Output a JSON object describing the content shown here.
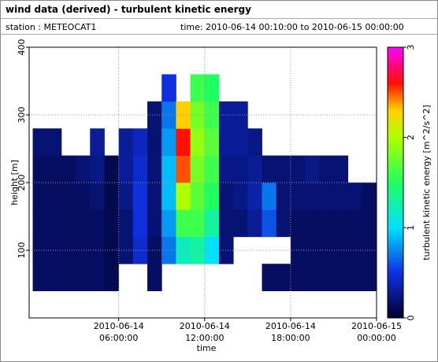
{
  "header": {
    "title": "wind data (derived) - turbulent kinetic energy",
    "station": "station : METEOCAT1",
    "time": "time: 2010-06-14 00:10:00 to 2010-06-15 00:00:00"
  },
  "chart_data": {
    "type": "heatmap",
    "x_label": "time",
    "y_label": "height [m]",
    "colorbar_label": "turbulent kinetic energy [m^2/s^2]",
    "xlim": [
      -0.25,
      24
    ],
    "xticks": [
      {
        "value": 6,
        "label": [
          "2010-06-14",
          "06:00:00"
        ]
      },
      {
        "value": 12,
        "label": [
          "2010-06-14",
          "12:00:00"
        ]
      },
      {
        "value": 18,
        "label": [
          "2010-06-14",
          "18:00:00"
        ]
      },
      {
        "value": 24,
        "label": [
          "2010-06-15",
          "00:00:00"
        ]
      }
    ],
    "ylim": [
      0,
      400
    ],
    "yticks": [
      100,
      200,
      300,
      400
    ],
    "clim": [
      0,
      3
    ],
    "cticks": [
      0,
      1,
      2,
      3
    ],
    "grid": true,
    "colormap": [
      [
        0,
        "#00002a"
      ],
      [
        0.5,
        "#1030e0"
      ],
      [
        1,
        "#00e0ff"
      ],
      [
        1.5,
        "#20ff60"
      ],
      [
        2,
        "#b0ff00"
      ],
      [
        2.3,
        "#ffd000"
      ],
      [
        2.6,
        "#ff1000"
      ],
      [
        3,
        "#ff00ff"
      ]
    ],
    "x": [
      0.5,
      1.5,
      2.5,
      3.5,
      4.5,
      5.5,
      6.5,
      7.5,
      8.5,
      9.5,
      10.5,
      11.5,
      12.5,
      13.5,
      14.5,
      15.5,
      16.5,
      17.5,
      18.5,
      19.5,
      20.5,
      21.5,
      22.5,
      23.5
    ],
    "y": [
      60,
      100,
      140,
      180,
      220,
      260,
      300,
      340
    ],
    "z": [
      [
        0.15,
        0.15,
        0.15,
        0.15,
        0.15,
        0.2,
        null,
        null
      ],
      [
        0.15,
        0.15,
        0.15,
        0.15,
        0.15,
        0.2,
        null,
        null
      ],
      [
        0.15,
        0.15,
        0.15,
        0.15,
        0.15,
        null,
        null,
        null
      ],
      [
        0.15,
        0.15,
        0.15,
        0.15,
        0.2,
        null,
        null,
        null
      ],
      [
        0.15,
        0.15,
        0.15,
        0.2,
        0.25,
        0.3,
        null,
        null
      ],
      [
        0.1,
        0.1,
        0.1,
        0.1,
        0.1,
        null,
        null,
        null
      ],
      [
        null,
        0.2,
        0.2,
        0.25,
        0.3,
        0.3,
        null,
        null
      ],
      [
        null,
        0.45,
        0.5,
        0.5,
        0.45,
        0.4,
        null,
        null
      ],
      [
        0.15,
        0.15,
        0.2,
        0.2,
        0.2,
        0.2,
        0.2,
        null
      ],
      [
        null,
        0.7,
        0.8,
        0.9,
        0.9,
        0.8,
        0.7,
        0.5
      ],
      [
        null,
        1.2,
        1.6,
        2.0,
        2.5,
        2.6,
        2.3,
        null
      ],
      [
        null,
        1.3,
        1.6,
        1.7,
        1.8,
        1.9,
        1.8,
        1.6
      ],
      [
        null,
        1.0,
        1.3,
        1.5,
        1.6,
        1.7,
        1.6,
        1.5
      ],
      [
        null,
        0.2,
        0.2,
        0.2,
        0.25,
        0.3,
        0.3,
        null
      ],
      [
        null,
        null,
        0.2,
        0.25,
        0.25,
        0.3,
        0.3,
        null
      ],
      [
        null,
        null,
        0.3,
        0.35,
        0.3,
        0.25,
        null,
        null
      ],
      [
        0.15,
        null,
        0.6,
        0.7,
        0.2,
        null,
        null,
        null
      ],
      [
        0.15,
        null,
        0.2,
        0.2,
        0.2,
        null,
        null,
        null
      ],
      [
        0.15,
        0.15,
        0.15,
        0.2,
        0.2,
        null,
        null,
        null
      ],
      [
        0.15,
        0.15,
        0.15,
        0.2,
        0.25,
        null,
        null,
        null
      ],
      [
        0.15,
        0.15,
        0.15,
        0.2,
        0.2,
        null,
        null,
        null
      ],
      [
        0.15,
        0.15,
        0.15,
        0.2,
        0.2,
        null,
        null,
        null
      ],
      [
        0.15,
        0.15,
        0.15,
        0.2,
        null,
        null,
        null,
        null
      ],
      [
        0.15,
        0.15,
        0.15,
        0.15,
        null,
        null,
        null,
        null
      ]
    ]
  }
}
